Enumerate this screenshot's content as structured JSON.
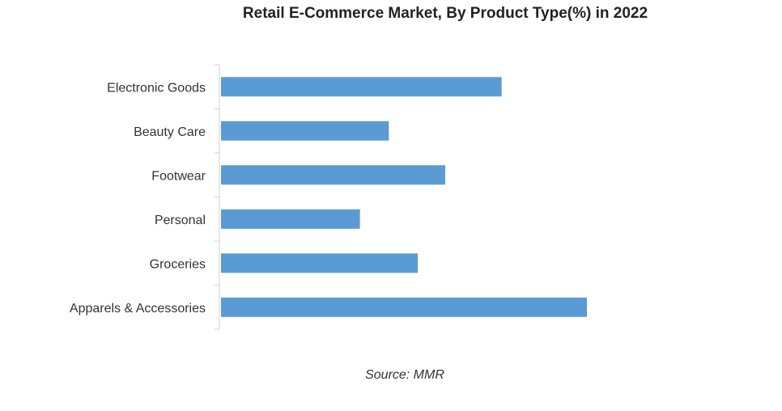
{
  "chart_data": {
    "type": "bar",
    "orientation": "horizontal",
    "title": "Retail E-Commerce Market, By Product Type(%) in 2022",
    "categories": [
      "Electronic Goods",
      "Beauty Care",
      "Footwear",
      "Personal",
      "Groceries",
      "Apparels & Accessories"
    ],
    "values": [
      20.4,
      12.2,
      16.3,
      10.1,
      14.3,
      26.6
    ],
    "values_estimated": true,
    "xlabel": "",
    "ylabel": "",
    "xlim": [
      0,
      30
    ],
    "grid": false,
    "legend": "none",
    "bar_color": "#5b9bd5",
    "source": "Source: MMR"
  }
}
